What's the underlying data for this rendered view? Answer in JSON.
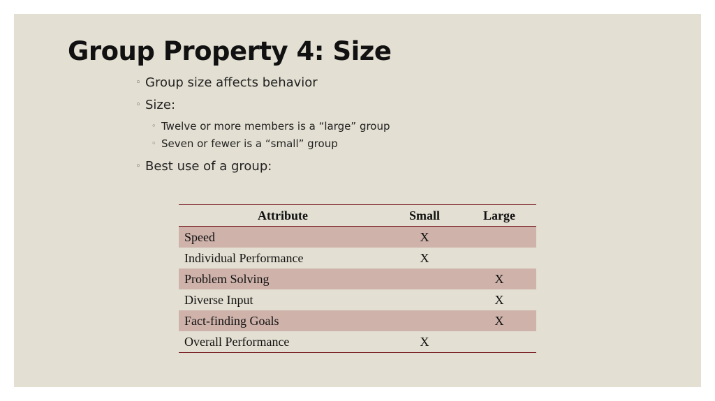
{
  "slide": {
    "title": "Group Property 4: Size",
    "bullets": {
      "b1": "Group size affects behavior",
      "b2": "Size:",
      "b2_sub": [
        "Twelve or more members  is a “large” group",
        "Seven or fewer is a “small” group"
      ],
      "b3": "Best use of a group:"
    },
    "bullet_marker": "◦"
  },
  "table": {
    "headers": [
      "Attribute",
      "Small",
      "Large"
    ],
    "rows": [
      {
        "attribute": "Speed",
        "small": "X",
        "large": ""
      },
      {
        "attribute": "Individual Performance",
        "small": "X",
        "large": ""
      },
      {
        "attribute": "Problem Solving",
        "small": "",
        "large": "X"
      },
      {
        "attribute": "Diverse Input",
        "small": "",
        "large": "X"
      },
      {
        "attribute": "Fact-finding Goals",
        "small": "",
        "large": "X"
      },
      {
        "attribute": "Overall Performance",
        "small": "X",
        "large": ""
      }
    ]
  },
  "colors": {
    "slide_background": "#e3dfd2",
    "row_shade": "#cfb3ab",
    "table_rule": "#7a1f24"
  }
}
